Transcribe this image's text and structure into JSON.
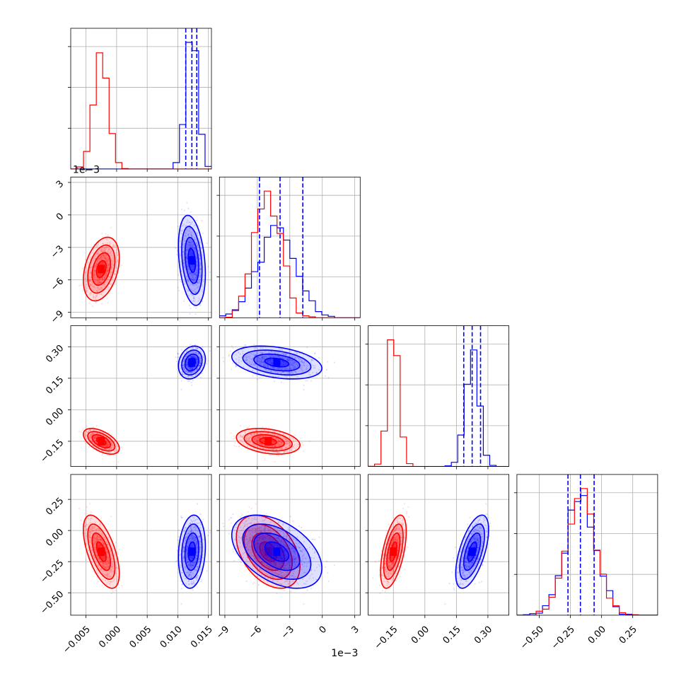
{
  "chart_data": {
    "type": "corner",
    "parameters": [
      {
        "name": "",
        "range": [
          -0.0075,
          0.0155
        ],
        "ticks": [
          -0.005,
          0.0,
          0.005,
          0.01,
          0.015
        ],
        "tick_labels": [
          "−0.005",
          "0.000",
          "0.005",
          "0.010",
          "0.015"
        ],
        "multiplier": ""
      },
      {
        "name": "",
        "range": [
          -9.5,
          3.5
        ],
        "ticks": [
          -9,
          -6,
          -3,
          0,
          3
        ],
        "tick_labels": [
          "−9",
          "−6",
          "−3",
          "0",
          "3"
        ],
        "multiplier": "1e−3"
      },
      {
        "name": "",
        "range": [
          -0.27,
          0.4
        ],
        "ticks": [
          -0.15,
          0.0,
          0.15,
          0.3
        ],
        "tick_labels": [
          "−0.15",
          "0.00",
          "0.15",
          "0.30"
        ],
        "multiplier": ""
      },
      {
        "name": "",
        "range": [
          -0.68,
          0.45
        ],
        "ticks": [
          -0.5,
          -0.25,
          0.0,
          0.25
        ],
        "tick_labels": [
          "−0.50",
          "−0.25",
          "0.00",
          "0.25"
        ],
        "multiplier": ""
      }
    ],
    "series": [
      {
        "name": "",
        "color": "#ff0000",
        "mean": [
          -0.0025,
          -5.0,
          -0.15,
          -0.17
        ],
        "std": [
          0.0012,
          1.2,
          0.025,
          0.12
        ],
        "corr": {
          "0-1": 0.35,
          "0-2": -0.55,
          "0-3": -0.6,
          "1-2": -0.3,
          "1-3": -0.4,
          "2-3": 0.55
        }
      },
      {
        "name": "",
        "color": "#0000ff",
        "mean": [
          0.0123,
          -4.2,
          0.225,
          -0.17
        ],
        "std": [
          0.0009,
          1.7,
          0.032,
          0.12
        ],
        "corr": {
          "0-1": -0.3,
          "0-2": 0.2,
          "0-3": 0.15,
          "1-2": -0.35,
          "1-3": -0.45,
          "2-3": 0.6
        }
      }
    ],
    "quantile_lines": {
      "color": "#0000ff",
      "values": [
        [
          0.0113,
          0.0123,
          0.0131
        ],
        [
          -5.8,
          -3.9,
          -1.8
        ],
        [
          0.185,
          0.225,
          0.265
        ],
        [
          -0.27,
          -0.17,
          -0.06
        ]
      ]
    },
    "grid": true
  }
}
